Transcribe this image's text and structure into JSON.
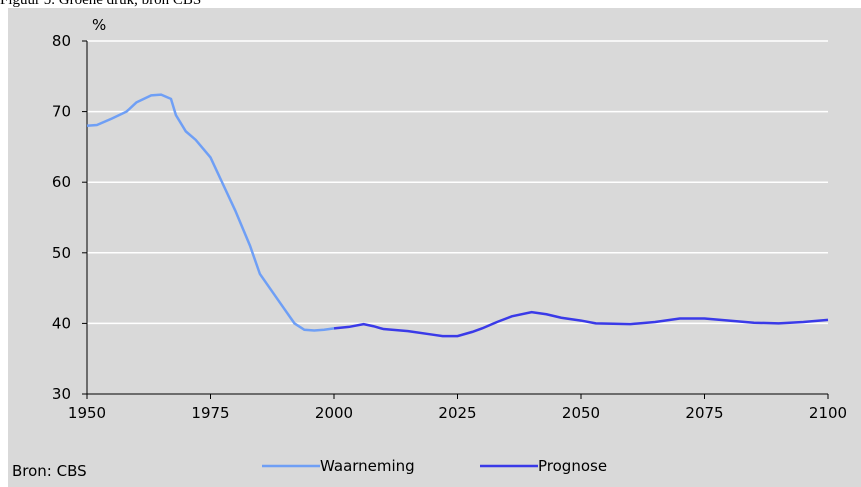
{
  "chart_data": {
    "type": "line",
    "title": "Figuur 5. Groene druk, bron CBS",
    "y_unit": "%",
    "source": "Bron: CBS",
    "xlim": [
      1950,
      2100
    ],
    "xticks": [
      1950,
      1975,
      2000,
      2025,
      2050,
      2075,
      2100
    ],
    "ylim": [
      30,
      80
    ],
    "yticks": [
      30,
      40,
      50,
      60,
      70,
      80
    ],
    "grid": true,
    "series": [
      {
        "name": "Waarneming",
        "color": "#6f9ff5",
        "x": [
          1950,
          1952,
          1955,
          1958,
          1960,
          1963,
          1965,
          1967,
          1968,
          1970,
          1972,
          1975,
          1978,
          1980,
          1983,
          1985,
          1988,
          1990,
          1992,
          1994,
          1996,
          1998,
          2000
        ],
        "values": [
          68,
          68.1,
          69,
          70,
          71.3,
          72.3,
          72.4,
          71.8,
          69.5,
          67.2,
          66,
          63.5,
          59,
          56,
          51,
          47,
          44,
          42,
          40,
          39.1,
          39,
          39.1,
          39.3
        ]
      },
      {
        "name": "Prognose",
        "color": "#3a3ae8",
        "x": [
          2000,
          2003,
          2006,
          2008,
          2010,
          2015,
          2020,
          2022,
          2025,
          2028,
          2030,
          2033,
          2036,
          2040,
          2043,
          2046,
          2050,
          2053,
          2060,
          2065,
          2070,
          2075,
          2080,
          2085,
          2090,
          2095,
          2100
        ],
        "values": [
          39.3,
          39.5,
          39.9,
          39.6,
          39.2,
          38.9,
          38.4,
          38.2,
          38.2,
          38.8,
          39.3,
          40.2,
          41,
          41.6,
          41.3,
          40.8,
          40.4,
          40,
          39.9,
          40.2,
          40.7,
          40.7,
          40.4,
          40.1,
          40,
          40.2,
          40.5
        ]
      }
    ]
  }
}
